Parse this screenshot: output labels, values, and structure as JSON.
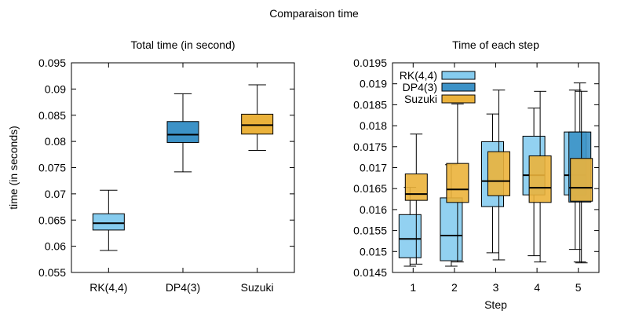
{
  "figure": {
    "title": "Comparaison time"
  },
  "colors": {
    "rk": "#86CCEF",
    "dp": "#3C92C7",
    "suzuki": "#EBB23B",
    "median": "#000000",
    "axis": "#000000"
  },
  "chart_data": [
    {
      "type": "box",
      "title": "Total time (in second)",
      "xlabel": "",
      "ylabel": "time (in seconds)",
      "ylim": [
        0.055,
        0.095
      ],
      "yticks": [
        "0.055",
        "0.06",
        "0.065",
        "0.07",
        "0.075",
        "0.08",
        "0.085",
        "0.09",
        "0.095"
      ],
      "categories": [
        "RK(4,4)",
        "DP4(3)",
        "Suzuki"
      ],
      "series": [
        {
          "name": "RK(4,4)",
          "color": "#86CCEF",
          "boxes": [
            {
              "x": 1,
              "min": 0.0592,
              "q1": 0.0631,
              "median": 0.0644,
              "q3": 0.0662,
              "max": 0.0707
            }
          ]
        },
        {
          "name": "DP4(3)",
          "color": "#3C92C7",
          "boxes": [
            {
              "x": 2,
              "min": 0.0742,
              "q1": 0.0798,
              "median": 0.0813,
              "q3": 0.0838,
              "max": 0.0891
            }
          ]
        },
        {
          "name": "Suzuki",
          "color": "#EBB23B",
          "boxes": [
            {
              "x": 3,
              "min": 0.0783,
              "q1": 0.0814,
              "median": 0.0831,
              "q3": 0.0852,
              "max": 0.0908
            }
          ]
        }
      ]
    },
    {
      "type": "box",
      "title": "Time of each step",
      "xlabel": "Step",
      "ylabel": "",
      "ylim": [
        0.0145,
        0.0195
      ],
      "yticks": [
        "0.0145",
        "0.015",
        "0.0155",
        "0.016",
        "0.0165",
        "0.017",
        "0.0175",
        "0.018",
        "0.0185",
        "0.019",
        "0.0195"
      ],
      "categories": [
        "1",
        "2",
        "3",
        "4",
        "5"
      ],
      "legend": {
        "position": "top-left"
      },
      "series": [
        {
          "name": "RK(4,4)",
          "color": "#86CCEF",
          "boxes": [
            {
              "x": 1,
              "min": 0.01465,
              "q1": 0.01485,
              "median": 0.0153,
              "q3": 0.01588,
              "max": 0.01653
            },
            {
              "x": 2,
              "min": 0.01465,
              "q1": 0.01478,
              "median": 0.01538,
              "q3": 0.01628,
              "max": 0.01707
            },
            {
              "x": 3,
              "min": 0.01497,
              "q1": 0.01607,
              "median": 0.01668,
              "q3": 0.01762,
              "max": 0.01828
            },
            {
              "x": 4,
              "min": 0.0149,
              "q1": 0.01635,
              "median": 0.01682,
              "q3": 0.01775,
              "max": 0.01842
            },
            {
              "x": 5,
              "min": 0.01505,
              "q1": 0.01635,
              "median": 0.01682,
              "q3": 0.01785,
              "max": 0.01885
            }
          ]
        },
        {
          "name": "DP4(3)",
          "color": "#3C92C7",
          "boxes": [
            {
              "x": 5,
              "min": 0.01475,
              "q1": 0.01618,
              "median": 0.01652,
              "q3": 0.01785,
              "max": 0.01902
            }
          ]
        },
        {
          "name": "Suzuki",
          "color": "#EBB23B",
          "boxes": [
            {
              "x": 1,
              "min": 0.0147,
              "q1": 0.01622,
              "median": 0.01637,
              "q3": 0.01685,
              "max": 0.0178
            },
            {
              "x": 2,
              "min": 0.01475,
              "q1": 0.01617,
              "median": 0.01648,
              "q3": 0.0171,
              "max": 0.01852
            },
            {
              "x": 3,
              "min": 0.0148,
              "q1": 0.01633,
              "median": 0.01668,
              "q3": 0.01738,
              "max": 0.01885
            },
            {
              "x": 4,
              "min": 0.01475,
              "q1": 0.01617,
              "median": 0.01652,
              "q3": 0.01728,
              "max": 0.01882
            },
            {
              "x": 5,
              "min": 0.01473,
              "q1": 0.0162,
              "median": 0.01652,
              "q3": 0.01722,
              "max": 0.01882
            }
          ]
        }
      ]
    }
  ]
}
